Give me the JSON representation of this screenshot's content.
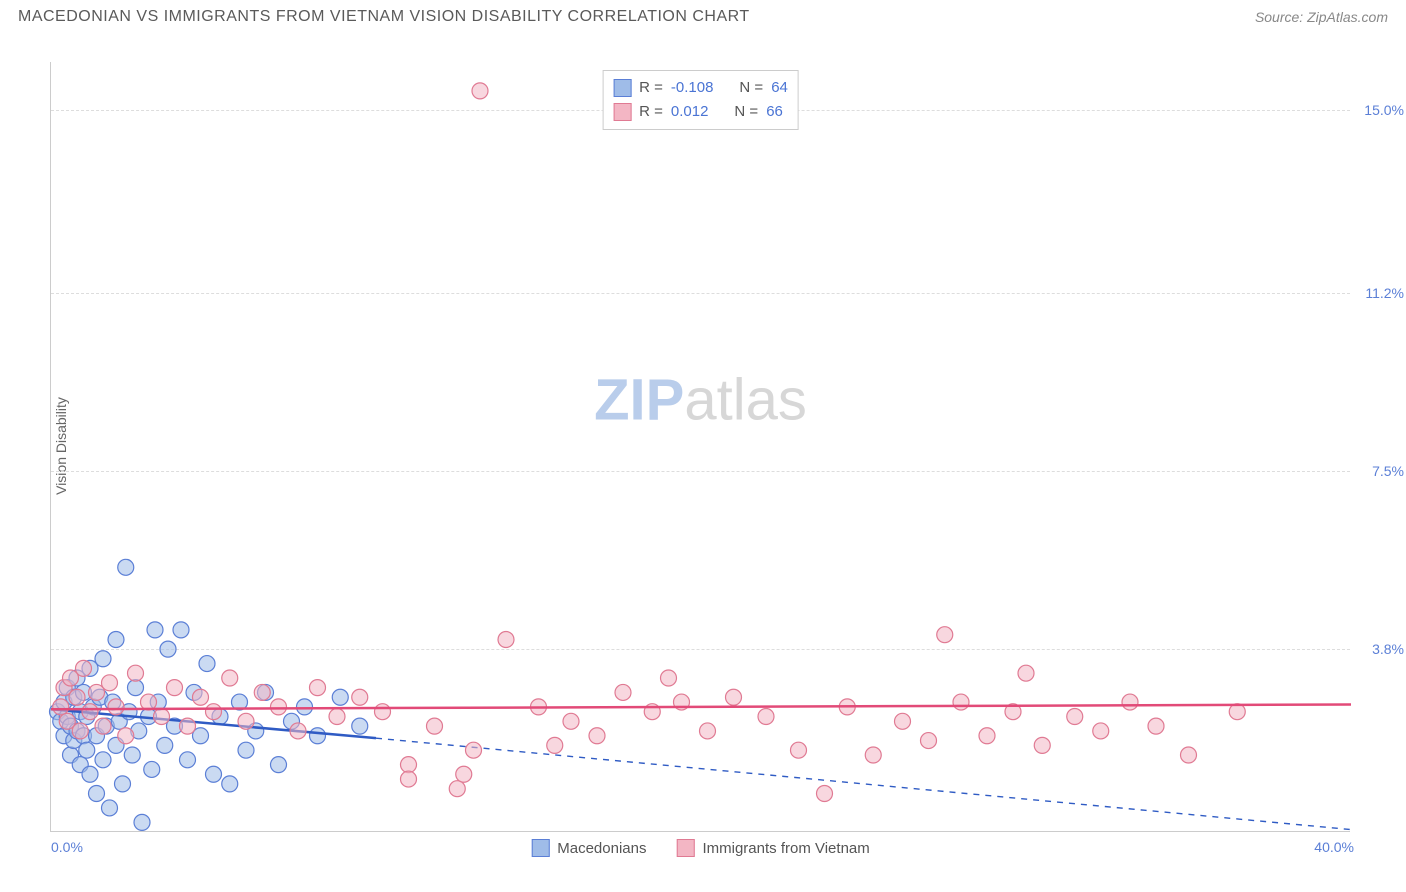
{
  "header": {
    "title": "MACEDONIAN VS IMMIGRANTS FROM VIETNAM VISION DISABILITY CORRELATION CHART",
    "source_prefix": "Source: ",
    "source": "ZipAtlas.com"
  },
  "chart": {
    "type": "scatter",
    "y_axis_label": "Vision Disability",
    "xlim": [
      0.0,
      40.0
    ],
    "ylim": [
      0.0,
      16.0
    ],
    "x_ticks": [
      {
        "pos": 0.0,
        "label": "0.0%",
        "align": "left"
      },
      {
        "pos": 40.0,
        "label": "40.0%",
        "align": "right"
      }
    ],
    "y_ticks": [
      {
        "pos": 3.8,
        "label": "3.8%"
      },
      {
        "pos": 7.5,
        "label": "7.5%"
      },
      {
        "pos": 11.2,
        "label": "11.2%"
      },
      {
        "pos": 15.0,
        "label": "15.0%"
      }
    ],
    "tick_color": "#5b7fd6",
    "grid_color": "#dddddd",
    "axis_color": "#cccccc",
    "background_color": "#ffffff",
    "marker_radius": 8,
    "marker_opacity": 0.55,
    "series": [
      {
        "name": "Macedonians",
        "fill_color": "#9fbce8",
        "stroke_color": "#5b7fd6",
        "trend_color": "#2f5bc4",
        "R": "-0.108",
        "N": "64",
        "trend_solid": {
          "x1": 0.0,
          "y1": 2.55,
          "x2": 10.0,
          "y2": 1.95
        },
        "trend_dash": {
          "x1": 10.0,
          "y1": 1.95,
          "x2": 40.0,
          "y2": 0.05
        },
        "points": [
          [
            0.2,
            2.5
          ],
          [
            0.3,
            2.3
          ],
          [
            0.4,
            2.7
          ],
          [
            0.4,
            2.0
          ],
          [
            0.5,
            2.4
          ],
          [
            0.5,
            3.0
          ],
          [
            0.6,
            2.2
          ],
          [
            0.6,
            1.6
          ],
          [
            0.7,
            2.8
          ],
          [
            0.7,
            1.9
          ],
          [
            0.8,
            2.1
          ],
          [
            0.8,
            3.2
          ],
          [
            0.9,
            2.5
          ],
          [
            0.9,
            1.4
          ],
          [
            1.0,
            2.0
          ],
          [
            1.0,
            2.9
          ],
          [
            1.1,
            1.7
          ],
          [
            1.1,
            2.4
          ],
          [
            1.2,
            3.4
          ],
          [
            1.2,
            1.2
          ],
          [
            1.3,
            2.6
          ],
          [
            1.4,
            2.0
          ],
          [
            1.4,
            0.8
          ],
          [
            1.5,
            2.8
          ],
          [
            1.6,
            1.5
          ],
          [
            1.6,
            3.6
          ],
          [
            1.7,
            2.2
          ],
          [
            1.8,
            0.5
          ],
          [
            1.9,
            2.7
          ],
          [
            2.0,
            1.8
          ],
          [
            2.0,
            4.0
          ],
          [
            2.1,
            2.3
          ],
          [
            2.2,
            1.0
          ],
          [
            2.3,
            5.5
          ],
          [
            2.4,
            2.5
          ],
          [
            2.5,
            1.6
          ],
          [
            2.6,
            3.0
          ],
          [
            2.7,
            2.1
          ],
          [
            2.8,
            0.2
          ],
          [
            3.0,
            2.4
          ],
          [
            3.1,
            1.3
          ],
          [
            3.2,
            4.2
          ],
          [
            3.3,
            2.7
          ],
          [
            3.5,
            1.8
          ],
          [
            3.6,
            3.8
          ],
          [
            3.8,
            2.2
          ],
          [
            4.0,
            4.2
          ],
          [
            4.2,
            1.5
          ],
          [
            4.4,
            2.9
          ],
          [
            4.6,
            2.0
          ],
          [
            4.8,
            3.5
          ],
          [
            5.0,
            1.2
          ],
          [
            5.2,
            2.4
          ],
          [
            5.5,
            1.0
          ],
          [
            5.8,
            2.7
          ],
          [
            6.0,
            1.7
          ],
          [
            6.3,
            2.1
          ],
          [
            6.6,
            2.9
          ],
          [
            7.0,
            1.4
          ],
          [
            7.4,
            2.3
          ],
          [
            7.8,
            2.6
          ],
          [
            8.2,
            2.0
          ],
          [
            8.9,
            2.8
          ],
          [
            9.5,
            2.2
          ]
        ]
      },
      {
        "name": "Immigrants from Vietnam",
        "fill_color": "#f3b6c4",
        "stroke_color": "#e07a93",
        "trend_color": "#e24a78",
        "R": "0.012",
        "N": "66",
        "trend_solid": {
          "x1": 0.0,
          "y1": 2.55,
          "x2": 40.0,
          "y2": 2.65
        },
        "trend_dash": null,
        "points": [
          [
            0.3,
            2.6
          ],
          [
            0.4,
            3.0
          ],
          [
            0.5,
            2.3
          ],
          [
            0.6,
            3.2
          ],
          [
            0.8,
            2.8
          ],
          [
            0.9,
            2.1
          ],
          [
            1.0,
            3.4
          ],
          [
            1.2,
            2.5
          ],
          [
            1.4,
            2.9
          ],
          [
            1.6,
            2.2
          ],
          [
            1.8,
            3.1
          ],
          [
            2.0,
            2.6
          ],
          [
            2.3,
            2.0
          ],
          [
            2.6,
            3.3
          ],
          [
            3.0,
            2.7
          ],
          [
            3.4,
            2.4
          ],
          [
            3.8,
            3.0
          ],
          [
            4.2,
            2.2
          ],
          [
            4.6,
            2.8
          ],
          [
            5.0,
            2.5
          ],
          [
            5.5,
            3.2
          ],
          [
            6.0,
            2.3
          ],
          [
            6.5,
            2.9
          ],
          [
            7.0,
            2.6
          ],
          [
            7.6,
            2.1
          ],
          [
            8.2,
            3.0
          ],
          [
            8.8,
            2.4
          ],
          [
            9.5,
            2.8
          ],
          [
            10.2,
            2.5
          ],
          [
            11.0,
            1.4
          ],
          [
            11.0,
            1.1
          ],
          [
            11.8,
            2.2
          ],
          [
            12.5,
            0.9
          ],
          [
            12.7,
            1.2
          ],
          [
            13.0,
            1.7
          ],
          [
            13.2,
            15.4
          ],
          [
            14.0,
            4.0
          ],
          [
            15.0,
            2.6
          ],
          [
            15.5,
            1.8
          ],
          [
            16.0,
            2.3
          ],
          [
            16.8,
            2.0
          ],
          [
            17.6,
            2.9
          ],
          [
            18.5,
            2.5
          ],
          [
            19.0,
            3.2
          ],
          [
            19.4,
            2.7
          ],
          [
            20.2,
            2.1
          ],
          [
            21.0,
            2.8
          ],
          [
            22.0,
            2.4
          ],
          [
            23.0,
            1.7
          ],
          [
            23.8,
            0.8
          ],
          [
            24.5,
            2.6
          ],
          [
            25.3,
            1.6
          ],
          [
            26.2,
            2.3
          ],
          [
            27.0,
            1.9
          ],
          [
            27.5,
            4.1
          ],
          [
            28.0,
            2.7
          ],
          [
            28.8,
            2.0
          ],
          [
            29.6,
            2.5
          ],
          [
            30.0,
            3.3
          ],
          [
            30.5,
            1.8
          ],
          [
            31.5,
            2.4
          ],
          [
            32.3,
            2.1
          ],
          [
            33.2,
            2.7
          ],
          [
            34.0,
            2.2
          ],
          [
            35.0,
            1.6
          ],
          [
            36.5,
            2.5
          ]
        ]
      }
    ]
  },
  "legend_bottom": {
    "items": [
      {
        "label": "Macedonians",
        "fill": "#9fbce8",
        "stroke": "#5b7fd6"
      },
      {
        "label": "Immigrants from Vietnam",
        "fill": "#f3b6c4",
        "stroke": "#e07a93"
      }
    ]
  },
  "legend_top": {
    "r_label": "R =",
    "n_label": "N =",
    "value_color": "#4a74d4"
  },
  "watermark": {
    "zip": "ZIP",
    "atlas": "atlas",
    "zip_color": "#b9cdeb",
    "atlas_color": "#d7d7d7"
  }
}
